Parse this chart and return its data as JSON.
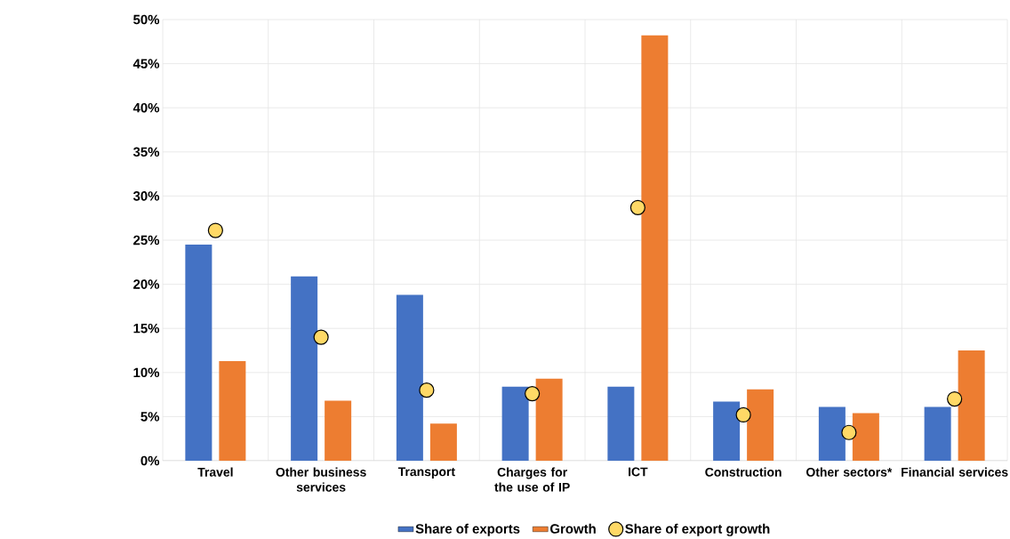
{
  "chart_data": {
    "type": "bar",
    "categories": [
      "Travel",
      "Other business services",
      "Transport",
      "Charges for the use of IP",
      "ICT",
      "Construction",
      "Other sectors*",
      "Financial services"
    ],
    "series": [
      {
        "name": "Share of exports",
        "color": "#4472c4",
        "values": [
          24.5,
          20.9,
          18.8,
          8.4,
          8.4,
          6.7,
          6.1,
          6.1
        ]
      },
      {
        "name": "Growth",
        "color": "#ed7d31",
        "values": [
          11.3,
          6.8,
          4.2,
          9.3,
          48.2,
          8.1,
          5.4,
          12.5
        ]
      },
      {
        "name": "Share of export growth",
        "color": "#ffd966",
        "type": "scatter",
        "values": [
          26.1,
          14.0,
          8.0,
          7.6,
          28.7,
          5.2,
          3.2,
          7.0
        ]
      }
    ],
    "ylim": [
      0,
      50
    ],
    "yticks": [
      {
        "value": 0,
        "label": "0%"
      },
      {
        "value": 5,
        "label": "5%"
      },
      {
        "value": 10,
        "label": "10%"
      },
      {
        "value": 15,
        "label": "15%"
      },
      {
        "value": 20,
        "label": "20%"
      },
      {
        "value": 25,
        "label": "25%"
      },
      {
        "value": 30,
        "label": "30%"
      },
      {
        "value": 35,
        "label": "35%"
      },
      {
        "value": 40,
        "label": "40%"
      },
      {
        "value": 45,
        "label": "45%"
      },
      {
        "value": 50,
        "label": "50%"
      }
    ],
    "grid": true,
    "legend": "bottom"
  }
}
